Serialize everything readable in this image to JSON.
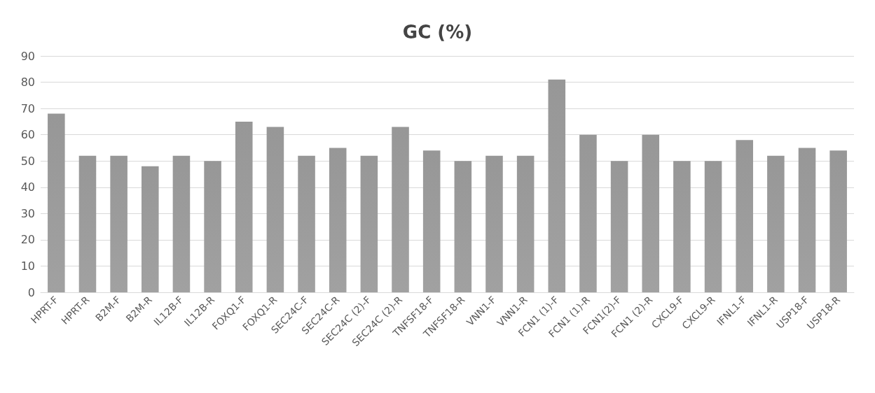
{
  "chart_data": {
    "type": "bar",
    "title": "GC (%)",
    "categories": [
      "HPRT-F",
      "HPRT-R",
      "B2M-F",
      "B2M-R",
      "IL12B-F",
      "IL12B-R",
      "FOXQ1-F",
      "FOXQ1-R",
      "SEC24C-F",
      "SEC24C-R",
      "SEC24C (2)-F",
      "SEC24C (2)-R",
      "TNFSF18-F",
      "TNFSF18-R",
      "VNN1-F",
      "VNN1-R",
      "FCN1 (1)-F",
      "FCN1 (1)-R",
      "FCN1(2)-F",
      "FCN1 (2)-R",
      "CXCL9-F",
      "CXCL9-R",
      "IFNL1-F",
      "IFNL1-R",
      "USP18-F",
      "USP18-R"
    ],
    "values": [
      68,
      52,
      52,
      48,
      52,
      50,
      65,
      63,
      52,
      55,
      52,
      63,
      54,
      50,
      52,
      52,
      81,
      60,
      50,
      60,
      50,
      50,
      58,
      52,
      55,
      54
    ],
    "color": "#8c8c8c",
    "ylim": [
      0,
      90
    ],
    "yticks": [
      0,
      10,
      20,
      30,
      40,
      50,
      60,
      70,
      80,
      90
    ],
    "grid": "y"
  }
}
